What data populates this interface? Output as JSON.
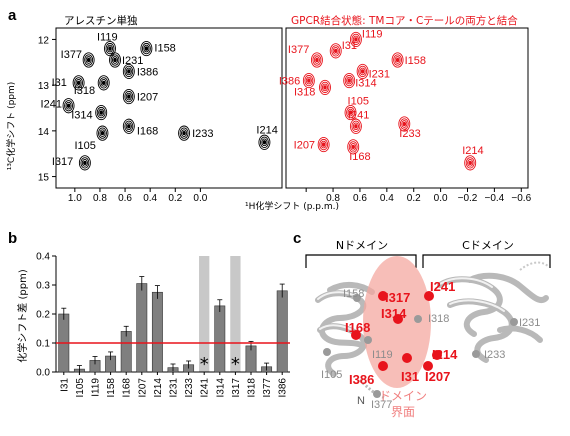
{
  "panels": {
    "a": "a",
    "b": "b",
    "c": "c"
  },
  "panel_a": {
    "left_title": "アレスチン単独",
    "right_title": "GPCR結合状態: TMコア・Cテールの両方と結合",
    "x_axis_label": "¹H化学シフト (p.p.m.)",
    "y_axis_label": "¹³C化学シフト (ppm)",
    "x_ticks": [
      "1.0",
      "0.8",
      "0.6",
      "0.4",
      "0.2",
      "0.0",
      "−0.2",
      "−0.4",
      "−0.6"
    ],
    "y_ticks": [
      "12",
      "13",
      "14",
      "15"
    ],
    "x_range": [
      1.15,
      -0.65
    ],
    "y_range": [
      11.75,
      15.25
    ],
    "left_color": "#000000",
    "right_color": "#e8141c",
    "left_peaks": [
      {
        "label": "I119",
        "x": 0.72,
        "y": 12.2
      },
      {
        "label": "I158",
        "x": 0.43,
        "y": 12.2
      },
      {
        "label": "I377",
        "x": 0.89,
        "y": 12.45
      },
      {
        "label": "I231",
        "x": 0.68,
        "y": 12.45
      },
      {
        "label": "I386",
        "x": 0.57,
        "y": 12.7
      },
      {
        "label": "I31",
        "x": 0.97,
        "y": 12.95
      },
      {
        "label": "I318",
        "x": 0.77,
        "y": 12.95
      },
      {
        "label": "I207",
        "x": 0.57,
        "y": 13.25
      },
      {
        "label": "I241",
        "x": 1.05,
        "y": 13.45
      },
      {
        "label": "I314",
        "x": 0.79,
        "y": 13.6
      },
      {
        "label": "I168",
        "x": 0.57,
        "y": 13.9
      },
      {
        "label": "I233",
        "x": 0.13,
        "y": 14.05
      },
      {
        "label": "I105",
        "x": 0.78,
        "y": 14.05
      },
      {
        "label": "I214",
        "x": -0.51,
        "y": 14.25
      },
      {
        "label": "I317",
        "x": 0.92,
        "y": 14.7
      }
    ],
    "right_peaks": [
      {
        "label": "I119",
        "x": 0.63,
        "y": 12.0
      },
      {
        "label": "I31",
        "x": 0.78,
        "y": 12.25
      },
      {
        "label": "I377",
        "x": 0.92,
        "y": 12.45
      },
      {
        "label": "I158",
        "x": 0.32,
        "y": 12.45
      },
      {
        "label": "I231",
        "x": 0.58,
        "y": 12.7
      },
      {
        "label": "I386",
        "x": 0.98,
        "y": 12.9
      },
      {
        "label": "I314",
        "x": 0.68,
        "y": 12.9
      },
      {
        "label": "I318",
        "x": 0.86,
        "y": 13.05
      },
      {
        "label": "I105",
        "x": 0.67,
        "y": 13.6
      },
      {
        "label": "I241",
        "x": 0.63,
        "y": 13.9
      },
      {
        "label": "I233",
        "x": 0.27,
        "y": 13.85
      },
      {
        "label": "I207",
        "x": 0.87,
        "y": 14.3
      },
      {
        "label": "I168",
        "x": 0.65,
        "y": 14.35
      },
      {
        "label": "I214",
        "x": -0.22,
        "y": 14.7
      }
    ]
  },
  "chart_data": {
    "type": "bar",
    "ylabel": "化学シフト差 (ppm)",
    "categories": [
      "I31",
      "I105",
      "I119",
      "I158",
      "I168",
      "I207",
      "I214",
      "I231",
      "I233",
      "I241",
      "I314",
      "I317",
      "I318",
      "I377",
      "I386"
    ],
    "values": [
      0.2,
      0.01,
      0.04,
      0.055,
      0.14,
      0.305,
      0.275,
      0.015,
      0.025,
      null,
      0.228,
      null,
      0.09,
      0.018,
      0.28
    ],
    "ylim": [
      0,
      0.4
    ],
    "yticks": [
      "0.0",
      "0.1",
      "0.2",
      "0.3",
      "0.4"
    ],
    "threshold": 0.1,
    "threshold_color": "#e8141c",
    "bar_color": "#7f7f7f",
    "marked_residues": [
      "I241",
      "I317"
    ],
    "marker_symbol": "*",
    "marker_band_color": "#c8c8c8"
  },
  "panel_c": {
    "n_domain_label": "Nドメイン",
    "c_domain_label": "Cドメイン",
    "interface_label_line1": "ドメイン",
    "interface_label_line2": "界面",
    "interface_color": "#f4a8a0",
    "highlighted_residues": [
      "I241",
      "I317",
      "I314",
      "I168",
      "I386",
      "I214",
      "I31",
      "I207"
    ],
    "other_residues": [
      "I158",
      "I318",
      "I231",
      "I119",
      "I233",
      "I105",
      "I377"
    ],
    "terminus_label": "N"
  }
}
